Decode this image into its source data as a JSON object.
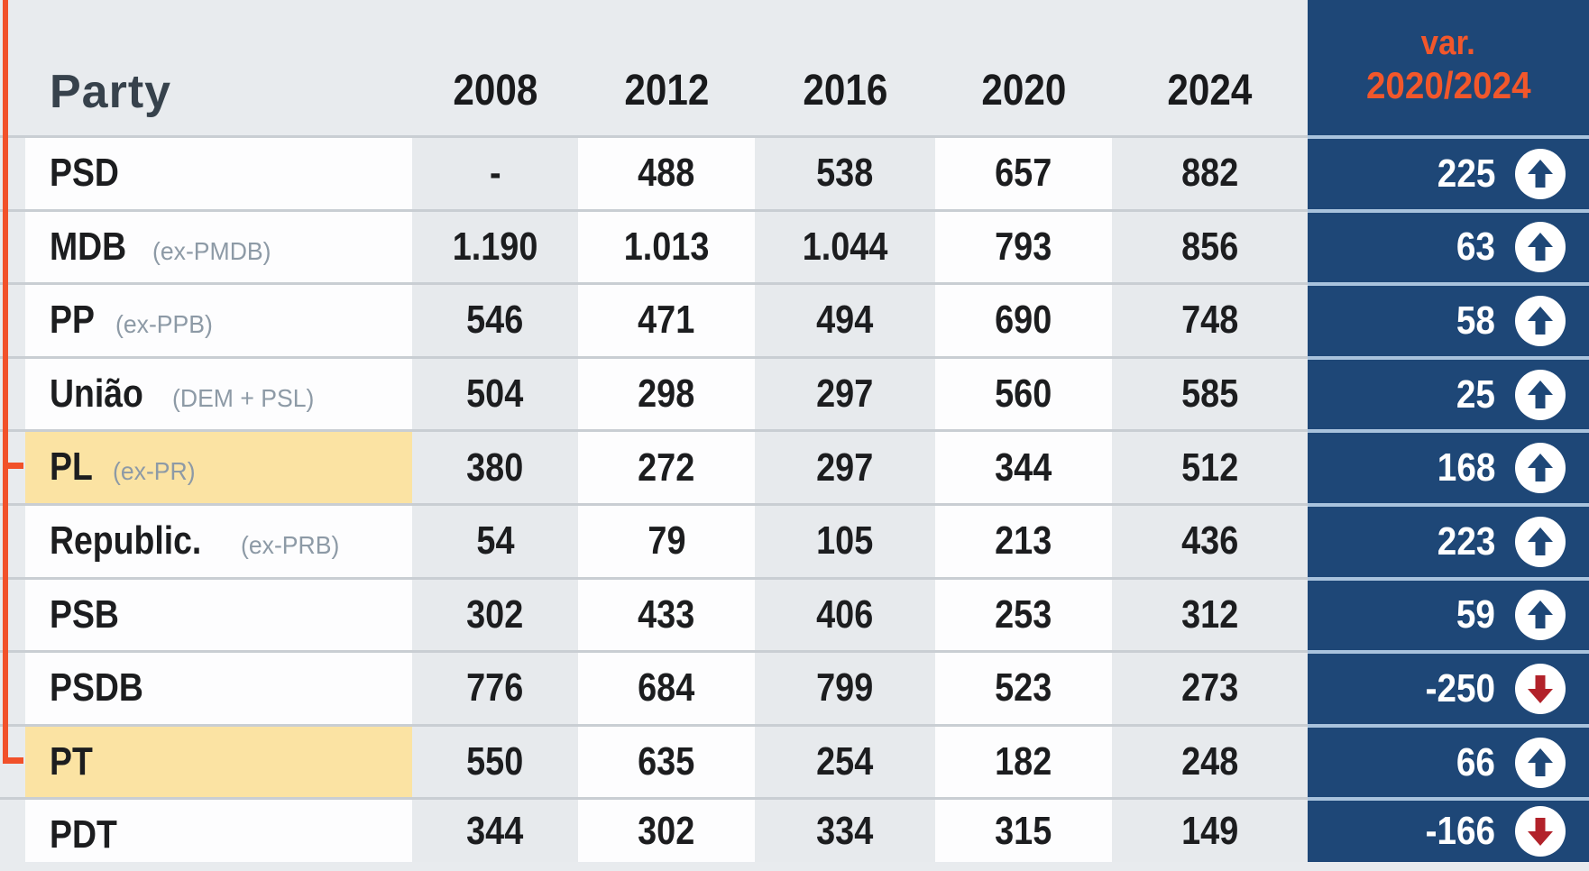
{
  "chart_data": {
    "type": "table",
    "header": {
      "party_label": "Party",
      "years": [
        "2008",
        "2012",
        "2016",
        "2020",
        "2024"
      ],
      "var_line1": "var.",
      "var_line2": "2020/2024"
    },
    "rows": [
      {
        "party": "PSD",
        "sub": "",
        "values": [
          "-",
          "488",
          "538",
          "657",
          "882"
        ],
        "var": "225",
        "direction": "up",
        "highlighted": false
      },
      {
        "party": "MDB",
        "sub": "(ex-PMDB)",
        "values": [
          "1.190",
          "1.013",
          "1.044",
          "793",
          "856"
        ],
        "var": "63",
        "direction": "up",
        "highlighted": false
      },
      {
        "party": "PP",
        "sub": "(ex-PPB)",
        "values": [
          "546",
          "471",
          "494",
          "690",
          "748"
        ],
        "var": "58",
        "direction": "up",
        "highlighted": false
      },
      {
        "party": "União",
        "sub": "(DEM + PSL)",
        "values": [
          "504",
          "298",
          "297",
          "560",
          "585"
        ],
        "var": "25",
        "direction": "up",
        "highlighted": false
      },
      {
        "party": "PL",
        "sub": "(ex-PR)",
        "values": [
          "380",
          "272",
          "297",
          "344",
          "512"
        ],
        "var": "168",
        "direction": "up",
        "highlighted": true
      },
      {
        "party": "Republic.",
        "sub": "(ex-PRB)",
        "values": [
          "54",
          "79",
          "105",
          "213",
          "436"
        ],
        "var": "223",
        "direction": "up",
        "highlighted": false
      },
      {
        "party": "PSB",
        "sub": "",
        "values": [
          "302",
          "433",
          "406",
          "253",
          "312"
        ],
        "var": "59",
        "direction": "up",
        "highlighted": false
      },
      {
        "party": "PSDB",
        "sub": "",
        "values": [
          "776",
          "684",
          "799",
          "523",
          "273"
        ],
        "var": "-250",
        "direction": "down",
        "highlighted": false
      },
      {
        "party": "PT",
        "sub": "",
        "values": [
          "550",
          "635",
          "254",
          "182",
          "248"
        ],
        "var": "66",
        "direction": "up",
        "highlighted": true
      },
      {
        "party": "PDT",
        "sub": "",
        "values": [
          "344",
          "302",
          "334",
          "315",
          "149"
        ],
        "var": "-166",
        "direction": "down",
        "highlighted": false
      }
    ],
    "colors": {
      "navy_column": "#1e4777",
      "orange_header_text": "#f2572b",
      "orange_connector": "#f1512a",
      "yellow_highlight": "#fbe3a3",
      "arrow_up": "#1e4777",
      "arrow_down": "#b2222a"
    },
    "layout": {
      "highlighted_parties_connected": [
        "PL",
        "PT"
      ]
    }
  }
}
